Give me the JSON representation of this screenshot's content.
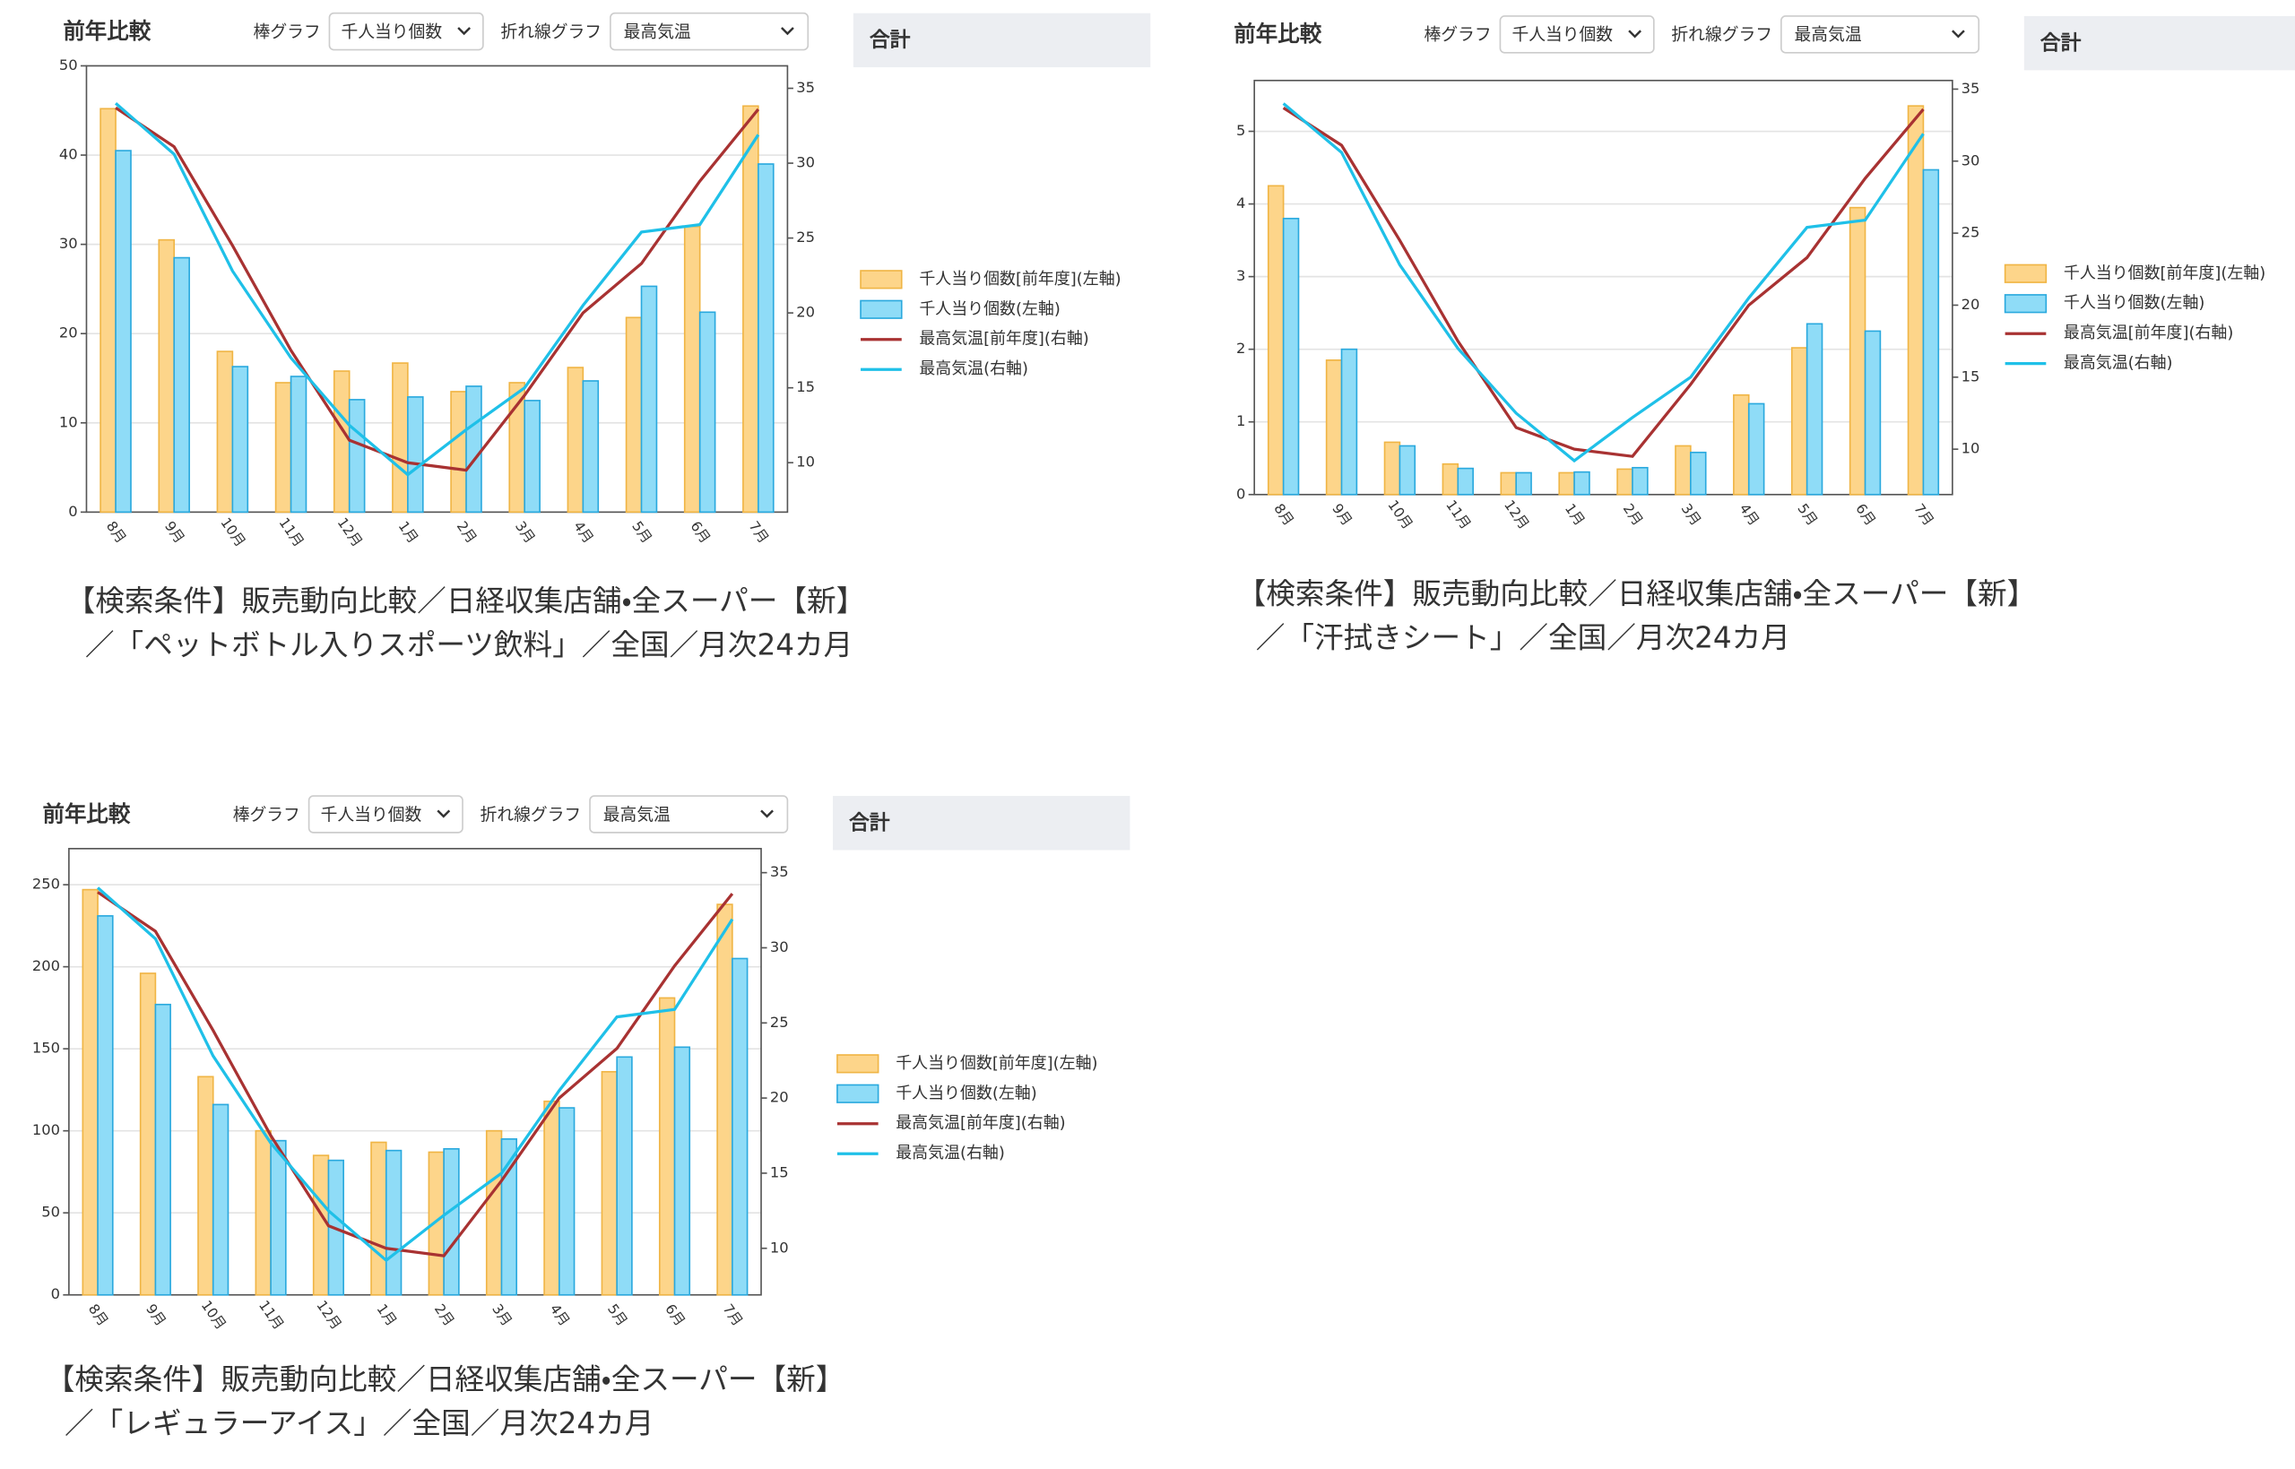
{
  "chart_data": [
    {
      "type": "combo",
      "categories": [
        "8月",
        "9月",
        "10月",
        "11月",
        "12月",
        "1月",
        "2月",
        "3月",
        "4月",
        "5月",
        "6月",
        "7月"
      ],
      "ylim": [
        0,
        50
      ],
      "yticks": [
        0,
        10,
        20,
        30,
        40,
        50
      ],
      "y2lim": [
        6.7,
        36.5
      ],
      "y2ticks": [
        10,
        15,
        20,
        25,
        30,
        35
      ],
      "grid": true,
      "series": [
        {
          "name": "千人当り個数[前年度](左軸)",
          "type": "bar",
          "color": "#fdd58a",
          "values": [
            45.2,
            30.5,
            18,
            14.5,
            15.8,
            16.7,
            13.5,
            14.5,
            16.2,
            21.8,
            32,
            45.5
          ]
        },
        {
          "name": "千人当り個数(左軸)",
          "type": "bar",
          "color": "#8fdcf7",
          "values": [
            40.5,
            28.5,
            16.3,
            15.2,
            12.6,
            12.9,
            14.1,
            12.5,
            14.7,
            25.3,
            22.4,
            39
          ]
        },
        {
          "name": "最高気温[前年度](右軸)",
          "type": "line",
          "axis": "y2",
          "color": "#a83232",
          "values": [
            33.7,
            31.1,
            24.5,
            17.5,
            11.5,
            10,
            9.5,
            14.5,
            20,
            23.3,
            28.8,
            33.6
          ]
        },
        {
          "name": "最高気温(右軸)",
          "type": "line",
          "axis": "y2",
          "color": "#1fc0e8",
          "values": [
            34,
            30.6,
            22.8,
            17,
            12.5,
            9.2,
            12.2,
            15,
            20.5,
            25.4,
            25.9,
            31.9
          ]
        }
      ]
    },
    {
      "type": "combo",
      "categories": [
        "8月",
        "9月",
        "10月",
        "11月",
        "12月",
        "1月",
        "2月",
        "3月",
        "4月",
        "5月",
        "6月",
        "7月"
      ],
      "ylim": [
        0,
        5.7
      ],
      "yticks": [
        0,
        1,
        2,
        3,
        4,
        5
      ],
      "y2lim": [
        6.85,
        35.6
      ],
      "y2ticks": [
        10,
        15,
        20,
        25,
        30,
        35
      ],
      "grid": true,
      "series": [
        {
          "name": "千人当り個数[前年度](左軸)",
          "type": "bar",
          "color": "#fdd58a",
          "values": [
            4.25,
            1.85,
            0.72,
            0.42,
            0.3,
            0.3,
            0.35,
            0.67,
            1.37,
            2.02,
            3.95,
            5.35
          ]
        },
        {
          "name": "千人当り個数(左軸)",
          "type": "bar",
          "color": "#8fdcf7",
          "values": [
            3.8,
            2,
            0.67,
            0.36,
            0.3,
            0.31,
            0.37,
            0.58,
            1.25,
            2.35,
            2.25,
            4.47
          ]
        },
        {
          "name": "最高気温[前年度](右軸)",
          "type": "line",
          "axis": "y2",
          "color": "#a83232",
          "values": [
            33.7,
            31.1,
            24.5,
            17.5,
            11.5,
            10,
            9.5,
            14.5,
            20,
            23.3,
            28.8,
            33.6
          ]
        },
        {
          "name": "最高気温(右軸)",
          "type": "line",
          "axis": "y2",
          "color": "#1fc0e8",
          "values": [
            34,
            30.6,
            22.8,
            17,
            12.5,
            9.2,
            12.2,
            15,
            20.5,
            25.4,
            25.9,
            31.9
          ]
        }
      ]
    },
    {
      "type": "combo",
      "categories": [
        "8月",
        "9月",
        "10月",
        "11月",
        "12月",
        "1月",
        "2月",
        "3月",
        "4月",
        "5月",
        "6月",
        "7月"
      ],
      "ylim": [
        0,
        272
      ],
      "yticks": [
        0,
        50,
        100,
        150,
        200,
        250
      ],
      "y2lim": [
        6.9,
        36.6
      ],
      "y2ticks": [
        10,
        15,
        20,
        25,
        30,
        35
      ],
      "grid": true,
      "series": [
        {
          "name": "千人当り個数[前年度](左軸)",
          "type": "bar",
          "color": "#fdd58a",
          "values": [
            247,
            196,
            133,
            100,
            85,
            93,
            87,
            100,
            118,
            136,
            181,
            238
          ]
        },
        {
          "name": "千人当り個数(左軸)",
          "type": "bar",
          "color": "#8fdcf7",
          "values": [
            231,
            177,
            116,
            94,
            82,
            88,
            89,
            95,
            114,
            145,
            151,
            205
          ]
        },
        {
          "name": "最高気温[前年度](右軸)",
          "type": "line",
          "axis": "y2",
          "color": "#a83232",
          "values": [
            33.7,
            31.1,
            24.5,
            17.5,
            11.5,
            10,
            9.5,
            14.5,
            20,
            23.3,
            28.8,
            33.6
          ]
        },
        {
          "name": "最高気温(右軸)",
          "type": "line",
          "axis": "y2",
          "color": "#1fc0e8",
          "values": [
            34,
            30.6,
            22.8,
            17,
            12.5,
            9.2,
            12.2,
            15,
            20.5,
            25.4,
            25.9,
            31.9
          ]
        }
      ]
    }
  ],
  "panels": [
    {
      "title": "前年比較",
      "bar_label": "棒グラフ",
      "bar_select": "千人当り個数",
      "line_label": "折れ線グラフ",
      "line_select": "最高気温",
      "total": "合計",
      "caption": [
        "【検索条件】販売動向比較／日経収集店舗・全スーパー【新】",
        "／「ペットボトル入りスポーツ飲料」／全国／月次24カ月"
      ]
    },
    {
      "title": "前年比較",
      "bar_label": "棒グラフ",
      "bar_select": "千人当り個数",
      "line_label": "折れ線グラフ",
      "line_select": "最高気温",
      "total": "合計",
      "caption": [
        "【検索条件】販売動向比較／日経収集店舗・全スーパー【新】",
        "／「汗拭きシート」／全国／月次24カ月"
      ]
    },
    {
      "title": "前年比較",
      "bar_label": "棒グラフ",
      "bar_select": "千人当り個数",
      "line_label": "折れ線グラフ",
      "line_select": "最高気温",
      "total": "合計",
      "caption": [
        "【検索条件】販売動向比較／日経収集店舗・全スーパー【新】",
        "／「レギュラーアイス」／全国／月次24カ月"
      ]
    }
  ]
}
